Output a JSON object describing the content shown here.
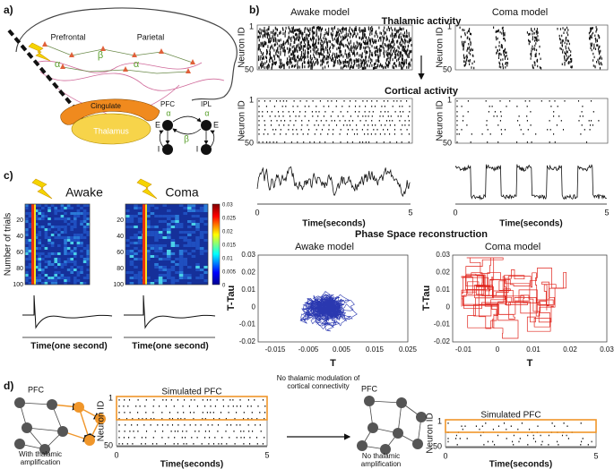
{
  "panel_a": {
    "label": "a)",
    "prefrontal": "Prefrontal",
    "parietal": "Parietal",
    "alpha": "α",
    "beta": "β",
    "cingulate": "Cingulate",
    "thalamus": "Thalamus",
    "pfc": "PFC",
    "ipl": "IPL",
    "excitatory": "E",
    "inhibitory": "I"
  },
  "panel_b": {
    "label": "b)",
    "awake_title": "Awake model",
    "coma_title": "Coma  model",
    "thalamic_title": "Thalamic activity",
    "cortical_title": "Cortical activity",
    "neuron_axis": "Neuron ID",
    "neuron_ticks": [
      "1",
      "50"
    ],
    "time_ticks": [
      "0",
      "5"
    ],
    "time_axis": "Time(seconds)",
    "phase_title": "Phase Space reconstruction",
    "phase_y_axis": "T-Tau",
    "phase_x_axis": "T",
    "phase_y_ticks": [
      "0.03",
      "0.02",
      "0.01",
      "0",
      "-0.01",
      "-0.02"
    ],
    "awake_x_ticks": [
      "-0.015",
      "-0.005",
      "0.005",
      "0.015",
      "0.025"
    ],
    "coma_x_ticks": [
      "-0.01",
      "0",
      "0.01",
      "0.02",
      "0.03"
    ]
  },
  "panel_c": {
    "label": "c)",
    "awake": "Awake",
    "coma": "Coma",
    "y_axis": "Number of trials",
    "y_ticks": [
      "20",
      "40",
      "60",
      "80",
      "100"
    ],
    "colorbar_ticks": [
      "0.03",
      "0.025",
      "0.02",
      "0.015",
      "0.01",
      "0.005",
      "0"
    ],
    "x_axis": "Time(one second)"
  },
  "panel_d": {
    "label": "d)",
    "pfc": "PFC",
    "with_caption": "With thalamic amplification",
    "raster_title": "Simulated PFC",
    "neuron_axis": "Neuron ID",
    "neuron_ticks": [
      "1",
      "50"
    ],
    "time_ticks": [
      "0",
      "5"
    ],
    "time_axis": "Time(seconds)",
    "transition": "No thalamic modulation of cortical connectivity",
    "without_caption": "No thalamic amplification"
  }
}
